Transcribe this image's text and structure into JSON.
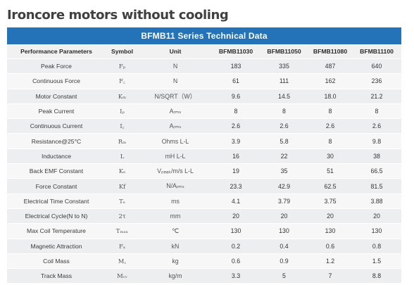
{
  "title": "Ironcore motors without cooling",
  "table": {
    "caption": "BFMB11 Series Technical Data",
    "headers": [
      "Performance Parameters",
      "Symbol",
      "Unit",
      "BFMB11030",
      "BFMB11050",
      "BFMB11080",
      "BFMB11100"
    ],
    "rows": [
      [
        "Peak Force",
        "Fₚ",
        "N",
        "183",
        "335",
        "487",
        "640"
      ],
      [
        "Continuous Force",
        "F꜀",
        "N",
        "61",
        "111",
        "162",
        "236"
      ],
      [
        "Motor Constant",
        "Kₘ",
        "N/SQRT（W）",
        "9.6",
        "14.5",
        "18.0",
        "21.2"
      ],
      [
        "Peak Current",
        "Iₚ",
        "Aᵣₘₛ",
        "8",
        "8",
        "8",
        "8"
      ],
      [
        "Continuous Current",
        "I꜀",
        "Aᵣₘₛ",
        "2.6",
        "2.6",
        "2.6",
        "2.6"
      ],
      [
        "Resistance@25°C",
        "Rₘ",
        "Ohms L-L",
        "3.9",
        "5.8",
        "8",
        "9.8"
      ],
      [
        "Inductance",
        "L",
        "mH L-L",
        "16",
        "22",
        "30",
        "38"
      ],
      [
        "Back EMF Constant",
        "Kₑ",
        "Vₚₑₐₖ/m/s L-L",
        "19",
        "35",
        "51",
        "66.5"
      ],
      [
        "Force Constant",
        "Kf",
        "N/Aᵣₘₛ",
        "23.3",
        "42.9",
        "62.5",
        "81.5"
      ],
      [
        "Electrical Time Constant",
        "Tₑ",
        "ms",
        "4.1",
        "3.79",
        "3.75",
        "3.88"
      ],
      [
        "Electrical Cycle(N to N)",
        "2τ",
        "mm",
        "20",
        "20",
        "20",
        "20"
      ],
      [
        "Max Coil Temperature",
        "Tₘₐₓ",
        "℃",
        "130",
        "130",
        "130",
        "130"
      ],
      [
        "Magnetic Attraction",
        "Fₐ",
        "kN",
        "0.2",
        "0.4",
        "0.6",
        "0.8"
      ],
      [
        "Coil Mass",
        "M꜀",
        "kg",
        "0.6",
        "0.9",
        "1.2",
        "1.5"
      ],
      [
        "Track Mass",
        "Mᵥᵥ",
        "kg/m",
        "3.3",
        "5",
        "7",
        "8.8"
      ]
    ]
  }
}
